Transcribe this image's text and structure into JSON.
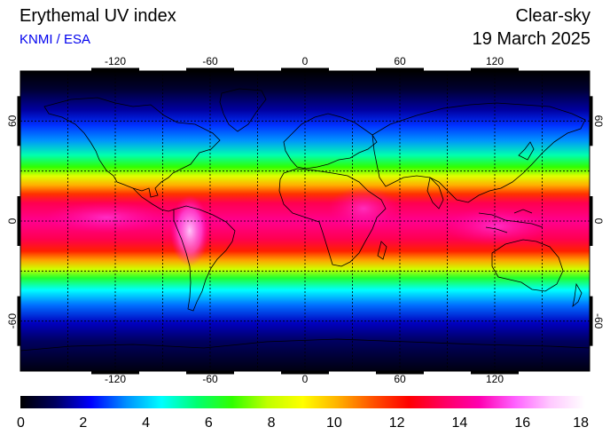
{
  "header": {
    "title": "Erythemal UV index",
    "credit": "KNMI / ESA",
    "sky_condition": "Clear-sky",
    "date": "19 March 2025"
  },
  "map": {
    "lon_ticks": [
      -120,
      -60,
      0,
      60,
      120
    ],
    "lat_ticks": [
      60,
      0,
      -60
    ],
    "lon_range": [
      -180,
      180
    ],
    "lat_range": [
      -90,
      90
    ],
    "grid": true
  },
  "colorbar": {
    "min": 0,
    "max": 18,
    "ticks": [
      0,
      2,
      4,
      6,
      8,
      10,
      12,
      14,
      16,
      18
    ],
    "colors": [
      "#000000",
      "#000060",
      "#0000ff",
      "#0090ff",
      "#00ffff",
      "#00ff70",
      "#30ff00",
      "#c0ff00",
      "#ffff00",
      "#ffb000",
      "#ff5000",
      "#ff0000",
      "#ff0060",
      "#ff00b0",
      "#ff60ff",
      "#ffc8ff",
      "#ffffff"
    ]
  }
}
